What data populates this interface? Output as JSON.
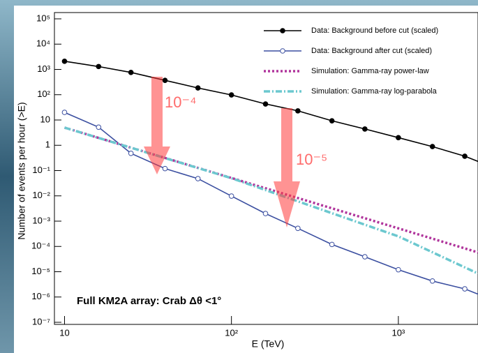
{
  "chart_data": {
    "type": "line",
    "x_label": "E (TeV)",
    "y_label": "Number of events per hour (>E)",
    "log_x": true,
    "log_y": true,
    "xlim": [
      8.7,
      3000
    ],
    "ylim": [
      1e-07,
      100000
    ],
    "xticks": [
      10,
      {
        "value": 100,
        "label": "10²"
      },
      {
        "value": 1000,
        "label": "10³"
      }
    ],
    "yticks": [
      {
        "value": 1e-07,
        "label": "10⁻⁷"
      },
      {
        "value": 1e-06,
        "label": "10⁻⁶"
      },
      {
        "value": 1e-05,
        "label": "10⁻⁵"
      },
      {
        "value": 0.0001,
        "label": "10⁻⁴"
      },
      {
        "value": 0.001,
        "label": "10⁻³"
      },
      {
        "value": 0.01,
        "label": "10⁻²"
      },
      {
        "value": 0.1,
        "label": "10⁻¹"
      },
      1,
      10,
      {
        "value": 100,
        "label": "10²"
      },
      {
        "value": 1000,
        "label": "10³"
      },
      {
        "value": 10000,
        "label": "10⁴"
      },
      {
        "value": 100000,
        "label": "10⁵"
      }
    ],
    "legend": "top-right",
    "series": [
      {
        "name": "Data: Background before cut (scaled)",
        "color": "#000000",
        "marker": "filled",
        "dash": "none",
        "x": [
          10,
          16,
          25,
          40,
          63,
          100,
          160,
          250,
          400,
          630,
          1000,
          1600,
          2500,
          3000
        ],
        "values": [
          2100,
          1300,
          760,
          370,
          185,
          98,
          43,
          23,
          9.3,
          4.4,
          2.0,
          0.89,
          0.37,
          0.23
        ]
      },
      {
        "name": "Data: Background after cut (scaled)",
        "color": "#3b4fa0",
        "marker": "open",
        "dash": "none",
        "x": [
          10,
          16,
          25,
          40,
          63,
          100,
          160,
          250,
          400,
          630,
          1000,
          1600,
          2500,
          3000
        ],
        "values": [
          20,
          5.2,
          0.48,
          0.12,
          0.048,
          0.0098,
          0.002,
          0.00052,
          0.00012,
          3.9e-05,
          1.2e-05,
          4.3e-06,
          2.1e-06,
          1.3e-06
        ]
      },
      {
        "name": "Simulation: Gamma-ray power-law",
        "color": "#b0359c",
        "marker": "none",
        "dash": "3 3",
        "x": [
          10,
          3000
        ],
        "values": [
          5,
          5.8e-05
        ]
      },
      {
        "name": "Simulation: Gamma-ray log-parabola",
        "color": "#6cc8cf",
        "marker": "none",
        "dash": "9 3 2 3",
        "x": [
          10,
          100,
          1000,
          3000
        ],
        "values": [
          5,
          0.05,
          0.00025,
          8.5e-06
        ]
      }
    ],
    "annotations": [
      "Full KM2A array: Crab Δθ <1°",
      "10⁻⁴",
      "10⁻⁵"
    ]
  }
}
